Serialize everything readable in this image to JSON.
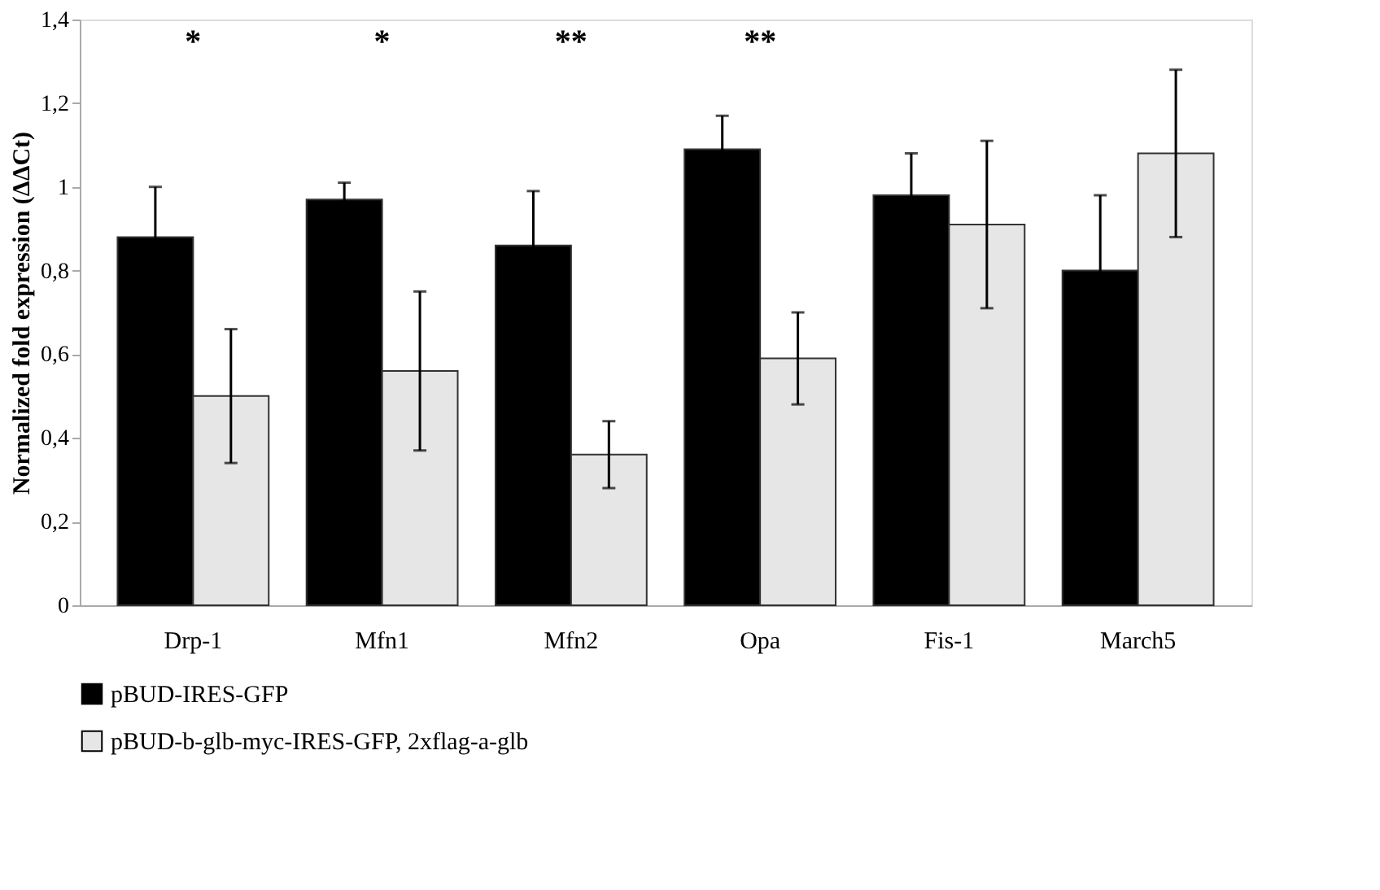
{
  "chart_data": {
    "type": "bar",
    "ylabel": "Normalized fold expression (ΔΔCt)",
    "categories": [
      "Drp-1",
      "Mfn1",
      "Mfn2",
      "Opa",
      "Fis-1",
      "March5"
    ],
    "series": [
      {
        "name": "pBUD-IRES-GFP",
        "color": "#000000",
        "values": [
          0.88,
          0.97,
          0.86,
          1.09,
          0.98,
          0.8
        ],
        "errors": [
          0.12,
          0.04,
          0.13,
          0.08,
          0.1,
          0.18
        ]
      },
      {
        "name": "pBUD-b-glb-myc-IRES-GFP, 2xflag-a-glb",
        "color": "#e6e6e6",
        "values": [
          0.5,
          0.56,
          0.36,
          0.59,
          0.91,
          1.08
        ],
        "errors": [
          0.16,
          0.19,
          0.08,
          0.11,
          0.2,
          0.2
        ]
      }
    ],
    "ylim": [
      0,
      1.4
    ],
    "yticks": [
      0,
      {
        "value": 0.2,
        "label": "0,2"
      },
      {
        "value": 0.4,
        "label": "0,4"
      },
      {
        "value": 0.6,
        "label": "0,6"
      },
      {
        "value": 0.8,
        "label": "0,8"
      },
      1,
      {
        "value": 1.2,
        "label": "1,2"
      },
      {
        "value": 1.4,
        "label": "1,4"
      }
    ],
    "annotations": [
      "*",
      "*",
      "**",
      "**"
    ],
    "grid": false,
    "legend": "bottom"
  }
}
